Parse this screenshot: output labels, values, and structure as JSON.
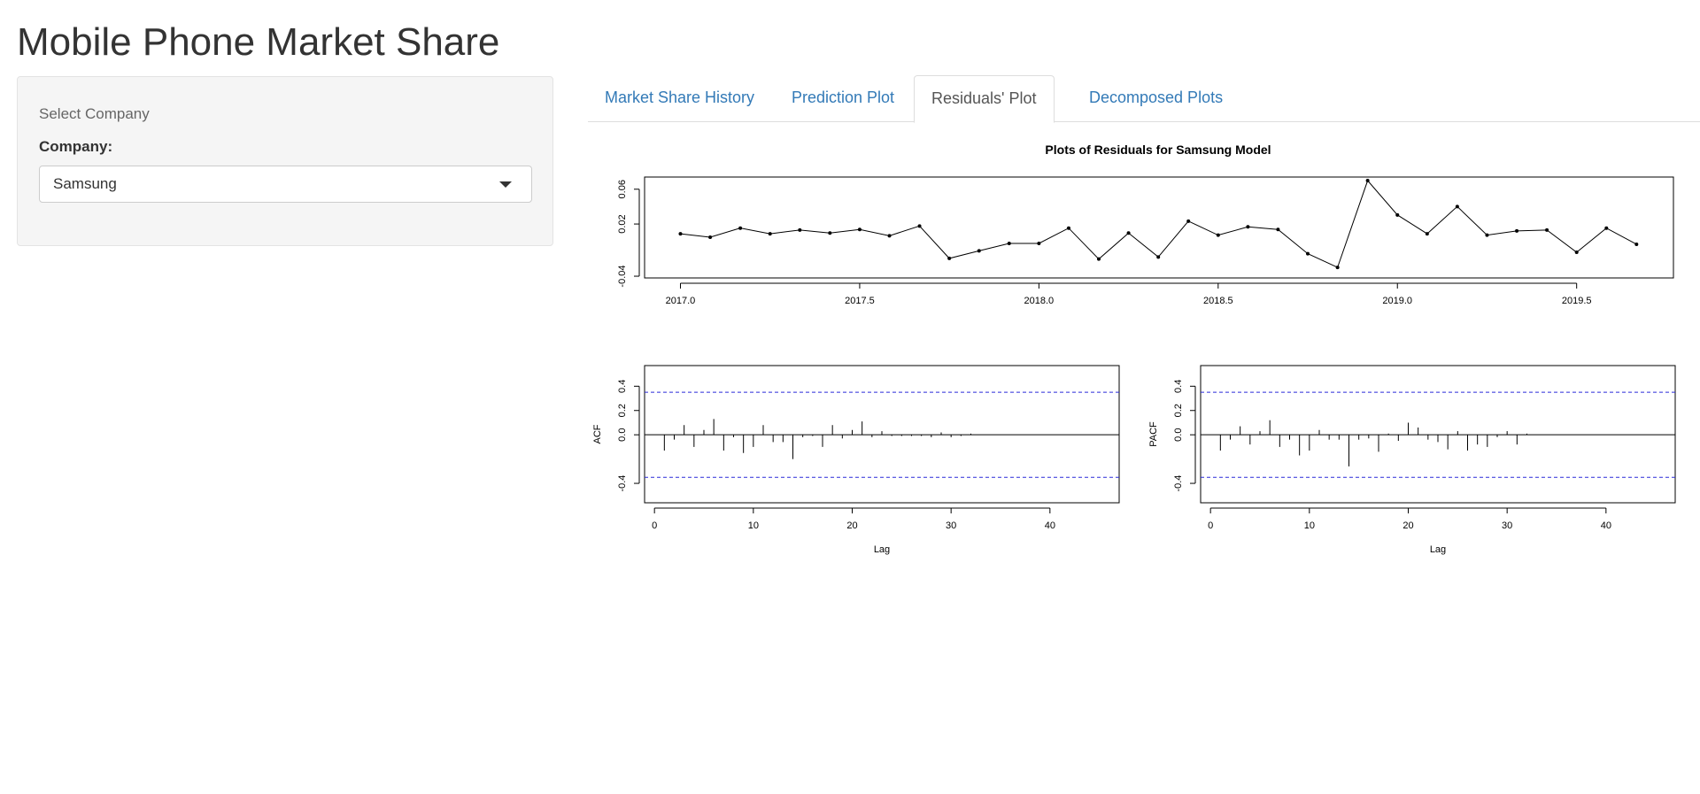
{
  "app": {
    "title": "Mobile Phone Market Share"
  },
  "sidebar": {
    "section_label": "Select Company",
    "company_label": "Company:",
    "company_selected": "Samsung"
  },
  "tabs": [
    {
      "label": "Market Share History",
      "active": false
    },
    {
      "label": "Prediction Plot",
      "active": false
    },
    {
      "label": "Residuals' Plot",
      "active": true
    },
    {
      "label": "Decomposed Plots",
      "active": false
    }
  ],
  "chart_data": [
    {
      "type": "line",
      "title": "Plots of Residuals for Samsung Model",
      "xlabel": "",
      "ylabel": "",
      "xlim": [
        2016.9,
        2019.77
      ],
      "ylim": [
        -0.042,
        0.074
      ],
      "xticks": [
        2017.0,
        2017.5,
        2018.0,
        2018.5,
        2019.0,
        2019.5
      ],
      "xtick_labels": [
        "2017.0",
        "2017.5",
        "2018.0",
        "2018.5",
        "2019.0",
        "2019.5"
      ],
      "yticks": [
        -0.04,
        0.02,
        0.06
      ],
      "ytick_labels": [
        "-0.04",
        "0.02",
        "0.06"
      ],
      "markers": true,
      "x": [
        2017.0,
        2017.083,
        2017.167,
        2017.25,
        2017.333,
        2017.417,
        2017.5,
        2017.583,
        2017.667,
        2017.75,
        2017.833,
        2017.917,
        2018.0,
        2018.083,
        2018.167,
        2018.25,
        2018.333,
        2018.417,
        2018.5,
        2018.583,
        2018.667,
        2018.75,
        2018.833,
        2018.917,
        2019.0,
        2019.083,
        2019.167,
        2019.25,
        2019.333,
        2019.417,
        2019.5,
        2019.583,
        2019.667
      ],
      "y": [
        0.0088,
        0.0048,
        0.0153,
        0.0088,
        0.0131,
        0.0096,
        0.0137,
        0.0065,
        0.0177,
        -0.0195,
        -0.0108,
        -0.0023,
        -0.0023,
        0.0153,
        -0.0203,
        0.0096,
        -0.0179,
        0.0233,
        0.0072,
        0.0167,
        0.0137,
        -0.0141,
        -0.0299,
        0.0699,
        0.0304,
        0.0088,
        0.0401,
        0.0072,
        0.0121,
        0.0131,
        -0.0125,
        0.0153,
        -0.0033
      ]
    },
    {
      "type": "bar",
      "title": "",
      "xlabel": "Lag",
      "ylabel": "ACF",
      "xlim": [
        -1,
        47
      ],
      "ylim": [
        -0.56,
        0.57
      ],
      "xticks": [
        0,
        10,
        20,
        30,
        40
      ],
      "yticks": [
        -0.4,
        0.0,
        0.2,
        0.4
      ],
      "ytick_labels": [
        "-0.4",
        "0.0",
        "0.2",
        "0.4"
      ],
      "confidence_bounds": [
        0.35,
        -0.35
      ],
      "lags": [
        1,
        2,
        3,
        4,
        5,
        6,
        7,
        8,
        9,
        10,
        11,
        12,
        13,
        14,
        15,
        16,
        17,
        18,
        19,
        20,
        21,
        22,
        23,
        24,
        25,
        26,
        27,
        28,
        29,
        30,
        31,
        32
      ],
      "values": [
        -0.13,
        -0.04,
        0.08,
        -0.1,
        0.04,
        0.13,
        -0.13,
        -0.02,
        -0.15,
        -0.1,
        0.08,
        -0.06,
        -0.06,
        -0.2,
        -0.02,
        -0.01,
        -0.1,
        0.08,
        -0.03,
        0.04,
        0.11,
        -0.02,
        0.03,
        -0.01,
        -0.01,
        -0.01,
        -0.01,
        -0.02,
        0.02,
        -0.02,
        -0.01,
        0.01
      ]
    },
    {
      "type": "bar",
      "title": "",
      "xlabel": "Lag",
      "ylabel": "PACF",
      "xlim": [
        -1,
        47
      ],
      "ylim": [
        -0.56,
        0.57
      ],
      "xticks": [
        0,
        10,
        20,
        30,
        40
      ],
      "yticks": [
        -0.4,
        0.0,
        0.2,
        0.4
      ],
      "ytick_labels": [
        "-0.4",
        "0.0",
        "0.2",
        "0.4"
      ],
      "confidence_bounds": [
        0.35,
        -0.35
      ],
      "lags": [
        1,
        2,
        3,
        4,
        5,
        6,
        7,
        8,
        9,
        10,
        11,
        12,
        13,
        14,
        15,
        16,
        17,
        18,
        19,
        20,
        21,
        22,
        23,
        24,
        25,
        26,
        27,
        28,
        29,
        30,
        31,
        32
      ],
      "values": [
        -0.13,
        -0.04,
        0.07,
        -0.08,
        0.03,
        0.12,
        -0.1,
        -0.04,
        -0.17,
        -0.13,
        0.04,
        -0.04,
        -0.04,
        -0.26,
        -0.04,
        -0.03,
        -0.14,
        0.01,
        -0.05,
        0.1,
        0.06,
        -0.04,
        -0.06,
        -0.12,
        0.03,
        -0.13,
        -0.08,
        -0.1,
        -0.02,
        0.03,
        -0.08,
        0.01
      ]
    }
  ]
}
